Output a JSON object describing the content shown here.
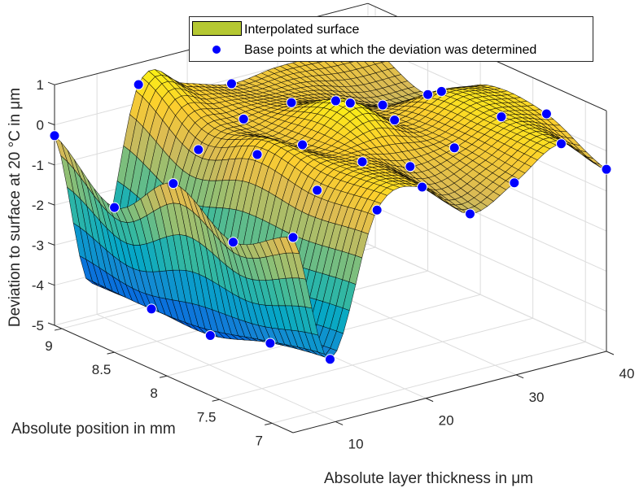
{
  "chart_data": {
    "type": "surface3d",
    "title": "",
    "xlabel": "Absolute layer thickness in μm",
    "ylabel": "Absolute position in mm",
    "zlabel": "Deviation to surface at 20 °C in μm",
    "xlim": [
      5.3,
      40
    ],
    "ylim": [
      6.8,
      9.07
    ],
    "zlim": [
      -5,
      1
    ],
    "xticks": [
      "10",
      "20",
      "30",
      "40"
    ],
    "yticks": [
      "7",
      "7.5",
      "8",
      "8.5",
      "9"
    ],
    "zticks": [
      "-5",
      "-4",
      "-3",
      "-2",
      "-1",
      "0",
      "1"
    ],
    "grid": true,
    "colormap": "parula",
    "clim": [
      -4.8,
      0.9
    ],
    "legend": {
      "placement": "top-center",
      "entries": [
        {
          "label": "Interpolated surface",
          "color": "#b5c832"
        },
        {
          "label": "Base points at which the deviation was determined",
          "color": "#0000ff"
        }
      ]
    },
    "surface": {
      "thickness": [
        5.3,
        9.4,
        14.6,
        19.6,
        24.9,
        29.8,
        35,
        40
      ],
      "position": [
        6.8,
        7.37,
        7.94,
        8.5,
        9.07
      ],
      "z": [
        [
          -0.13,
          -0.92,
          -0.13,
          -1.39,
          -0.27
        ],
        [
          -3.41,
          -3.68,
          -4.16,
          -4.16,
          -4.2
        ],
        [
          0.01,
          -0.17,
          0.05,
          -0.49,
          0.46
        ],
        [
          0.29,
          0.25,
          0.0,
          -0.02,
          0.2
        ],
        [
          -0.69,
          -0.18,
          0.73,
          0.08,
          -0.12
        ],
        [
          -0.2,
          0.0,
          0.02,
          -0.16,
          0.0
        ],
        [
          0.47,
          0.47,
          0.43,
          -0.57,
          0.0
        ],
        [
          -0.46,
          0.25,
          0.3,
          -0.6,
          0.0
        ]
      ]
    },
    "base_points": [
      [
        5.3,
        6.8,
        -0.13
      ],
      [
        5.3,
        7.37,
        -0.92
      ],
      [
        5.3,
        7.94,
        -0.13
      ],
      [
        5.3,
        8.5,
        -1.39
      ],
      [
        5.3,
        9.07,
        -0.27
      ],
      [
        9.4,
        6.8,
        -3.41
      ],
      [
        9.4,
        7.37,
        -3.68
      ],
      [
        9.4,
        7.94,
        -4.16
      ],
      [
        9.4,
        8.5,
        -4.16
      ],
      [
        14.6,
        6.8,
        0.01
      ],
      [
        14.6,
        7.37,
        -0.17
      ],
      [
        14.6,
        7.94,
        0.05
      ],
      [
        14.6,
        8.5,
        -0.49
      ],
      [
        14.6,
        9.07,
        0.46
      ],
      [
        19.6,
        6.8,
        0.29
      ],
      [
        19.6,
        7.37,
        0.25
      ],
      [
        19.6,
        7.94,
        0.0
      ],
      [
        19.6,
        8.5,
        -0.02
      ],
      [
        24.9,
        6.8,
        -0.69
      ],
      [
        24.9,
        7.37,
        -0.18
      ],
      [
        24.9,
        7.94,
        0.73
      ],
      [
        24.9,
        8.5,
        0.08
      ],
      [
        24.9,
        9.07,
        -0.12
      ],
      [
        29.8,
        6.8,
        -0.2
      ],
      [
        29.8,
        7.37,
        0.0
      ],
      [
        29.8,
        7.94,
        0.02
      ],
      [
        29.8,
        8.5,
        -0.16
      ],
      [
        35,
        6.8,
        0.47
      ],
      [
        35,
        7.37,
        0.47
      ],
      [
        35,
        7.94,
        0.43
      ],
      [
        35,
        8.5,
        -0.57
      ],
      [
        40,
        6.8,
        -0.46
      ],
      [
        40,
        7.37,
        0.25
      ],
      [
        40,
        8.5,
        -0.6
      ]
    ],
    "point_color": "#0000ff"
  }
}
